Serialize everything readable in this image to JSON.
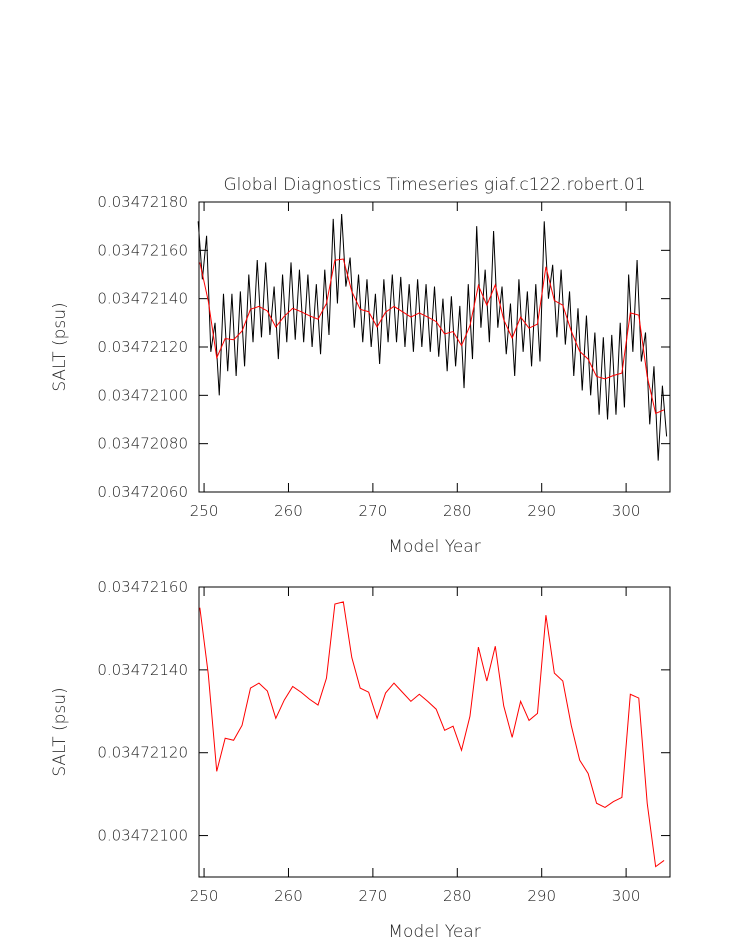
{
  "chart_data": [
    {
      "type": "line",
      "title": "Global Diagnostics Timeseries giaf.c122.robert.01",
      "x_label": "Model Year",
      "y_label": "SALT (psu)",
      "xlim": [
        249.4,
        305.2
      ],
      "xticks": [
        250,
        260,
        270,
        280,
        290,
        300
      ],
      "ylim": [
        0.0347206,
        0.0347218
      ],
      "yticks": [
        {
          "value": 0.0347206,
          "label": "0.03472060"
        },
        {
          "value": 0.0347208,
          "label": "0.03472080"
        },
        {
          "value": 0.034721,
          "label": "0.03472100"
        },
        {
          "value": 0.0347212,
          "label": "0.03472120"
        },
        {
          "value": 0.0347214,
          "label": "0.03472140"
        },
        {
          "value": 0.0347216,
          "label": "0.03472160"
        },
        {
          "value": 0.0347218,
          "label": "0.03472180"
        }
      ],
      "series": [
        {
          "color": "#000000",
          "x": [
            249.3,
            249.8,
            250.3,
            250.8,
            251.3,
            251.8,
            252.3,
            252.8,
            253.3,
            253.8,
            254.3,
            254.8,
            255.3,
            255.8,
            256.3,
            256.8,
            257.3,
            257.8,
            258.3,
            258.8,
            259.3,
            259.8,
            260.3,
            260.8,
            261.3,
            261.8,
            262.3,
            262.8,
            263.3,
            263.8,
            264.3,
            264.8,
            265.3,
            265.8,
            266.3,
            266.8,
            267.3,
            267.8,
            268.3,
            268.8,
            269.3,
            269.8,
            270.3,
            270.8,
            271.3,
            271.8,
            272.3,
            272.8,
            273.3,
            273.8,
            274.3,
            274.8,
            275.3,
            275.8,
            276.3,
            276.8,
            277.3,
            277.8,
            278.3,
            278.8,
            279.3,
            279.8,
            280.3,
            280.8,
            281.3,
            281.8,
            282.3,
            282.8,
            283.3,
            283.8,
            284.3,
            284.8,
            285.3,
            285.8,
            286.3,
            286.8,
            287.3,
            287.8,
            288.3,
            288.8,
            289.3,
            289.8,
            290.3,
            290.8,
            291.3,
            291.8,
            292.3,
            292.8,
            293.3,
            293.8,
            294.3,
            294.8,
            295.3,
            295.8,
            296.3,
            296.8,
            297.3,
            297.8,
            298.3,
            298.8,
            299.3,
            299.8,
            300.3,
            300.8,
            301.3,
            301.8,
            302.3,
            302.8,
            303.3,
            303.8,
            304.3,
            304.8
          ],
          "values": [
            0.03472172,
            0.03472148,
            0.03472166,
            0.03472118,
            0.0347213,
            0.034721,
            0.03472142,
            0.0347211,
            0.03472142,
            0.03472108,
            0.03472143,
            0.03472112,
            0.0347215,
            0.03472122,
            0.03472156,
            0.03472124,
            0.03472155,
            0.03472125,
            0.03472145,
            0.03472115,
            0.0347215,
            0.03472122,
            0.03472155,
            0.03472123,
            0.03472152,
            0.03472122,
            0.0347215,
            0.0347212,
            0.03472146,
            0.03472117,
            0.03472152,
            0.03472125,
            0.03472173,
            0.03472138,
            0.03472175,
            0.03472145,
            0.03472157,
            0.03472128,
            0.0347215,
            0.03472122,
            0.03472148,
            0.0347212,
            0.03472142,
            0.03472113,
            0.03472148,
            0.03472122,
            0.0347215,
            0.03472122,
            0.03472149,
            0.0347212,
            0.03472146,
            0.03472118,
            0.03472148,
            0.0347212,
            0.03472146,
            0.03472118,
            0.03472145,
            0.03472116,
            0.0347214,
            0.0347211,
            0.03472141,
            0.03472112,
            0.03472137,
            0.03472103,
            0.03472146,
            0.03472115,
            0.0347217,
            0.03472128,
            0.03472152,
            0.03472122,
            0.03472168,
            0.03472128,
            0.03472145,
            0.03472117,
            0.03472138,
            0.03472108,
            0.03472148,
            0.03472118,
            0.03472143,
            0.03472112,
            0.03472146,
            0.03472114,
            0.03472172,
            0.0347214,
            0.03472154,
            0.03472124,
            0.03472152,
            0.03472121,
            0.03472143,
            0.03472108,
            0.03472136,
            0.03472102,
            0.03472133,
            0.034721,
            0.03472126,
            0.03472092,
            0.03472124,
            0.0347209,
            0.03472125,
            0.03472092,
            0.0347213,
            0.03472095,
            0.0347215,
            0.03472118,
            0.03472156,
            0.03472114,
            0.03472126,
            0.03472088,
            0.03472112,
            0.03472073,
            0.03472104,
            0.03472083
          ]
        },
        {
          "color": "#ff0000",
          "x": [
            249.5,
            250.5,
            251.5,
            252.5,
            253.5,
            254.5,
            255.5,
            256.5,
            257.5,
            258.5,
            259.5,
            260.5,
            261.5,
            262.5,
            263.5,
            264.5,
            265.5,
            266.5,
            267.5,
            268.5,
            269.5,
            270.5,
            271.5,
            272.5,
            273.5,
            274.5,
            275.5,
            276.5,
            277.5,
            278.5,
            279.5,
            280.5,
            281.5,
            282.5,
            283.5,
            284.5,
            285.5,
            286.5,
            287.5,
            288.5,
            289.5,
            290.5,
            291.5,
            292.5,
            293.5,
            294.5,
            295.5,
            296.5,
            297.5,
            298.5,
            299.5,
            300.5,
            301.5,
            302.5,
            303.5,
            304.5
          ],
          "values": [
            0.03472155,
            0.03472139,
            0.034721155,
            0.034721235,
            0.03472123,
            0.034721266,
            0.034721356,
            0.034721368,
            0.034721349,
            0.034721283,
            0.034721327,
            0.03472136,
            0.034721346,
            0.034721329,
            0.034721315,
            0.03472138,
            0.034721559,
            0.034721564,
            0.03472143,
            0.034721356,
            0.034721346,
            0.034721283,
            0.034721344,
            0.034721368,
            0.034721346,
            0.034721324,
            0.034721341,
            0.034721324,
            0.034721305,
            0.034721254,
            0.034721264,
            0.034721206,
            0.034721288,
            0.034721455,
            0.034721373,
            0.034721457,
            0.034721313,
            0.034721237,
            0.034721324,
            0.034721278,
            0.034721295,
            0.034721532,
            0.034721392,
            0.034721373,
            0.034721266,
            0.034721182,
            0.03472115,
            0.034721078,
            0.034721068,
            0.034721082,
            0.034721092,
            0.034721341,
            0.034721332,
            0.034721078,
            0.034720925,
            0.03472094
          ]
        }
      ]
    },
    {
      "type": "line",
      "x_label": "Model Year",
      "y_label": "SALT (psu)",
      "xlim": [
        249.4,
        305.2
      ],
      "xticks": [
        250,
        260,
        270,
        280,
        290,
        300
      ],
      "ylim": [
        0.0347209,
        0.0347216
      ],
      "yticks": [
        {
          "value": 0.034721,
          "label": "0.03472100"
        },
        {
          "value": 0.0347212,
          "label": "0.03472120"
        },
        {
          "value": 0.0347214,
          "label": "0.03472140"
        },
        {
          "value": 0.0347216,
          "label": "0.03472160"
        }
      ],
      "series": [
        {
          "color": "#ff0000",
          "x": [
            249.5,
            250.5,
            251.5,
            252.5,
            253.5,
            254.5,
            255.5,
            256.5,
            257.5,
            258.5,
            259.5,
            260.5,
            261.5,
            262.5,
            263.5,
            264.5,
            265.5,
            266.5,
            267.5,
            268.5,
            269.5,
            270.5,
            271.5,
            272.5,
            273.5,
            274.5,
            275.5,
            276.5,
            277.5,
            278.5,
            279.5,
            280.5,
            281.5,
            282.5,
            283.5,
            284.5,
            285.5,
            286.5,
            287.5,
            288.5,
            289.5,
            290.5,
            291.5,
            292.5,
            293.5,
            294.5,
            295.5,
            296.5,
            297.5,
            298.5,
            299.5,
            300.5,
            301.5,
            302.5,
            303.5,
            304.5
          ],
          "values": [
            0.03472155,
            0.03472139,
            0.034721155,
            0.034721235,
            0.03472123,
            0.034721266,
            0.034721356,
            0.034721368,
            0.034721349,
            0.034721283,
            0.034721327,
            0.03472136,
            0.034721346,
            0.034721329,
            0.034721315,
            0.03472138,
            0.034721559,
            0.034721564,
            0.03472143,
            0.034721356,
            0.034721346,
            0.034721283,
            0.034721344,
            0.034721368,
            0.034721346,
            0.034721324,
            0.034721341,
            0.034721324,
            0.034721305,
            0.034721254,
            0.034721264,
            0.034721206,
            0.034721288,
            0.034721455,
            0.034721373,
            0.034721457,
            0.034721313,
            0.034721237,
            0.034721324,
            0.034721278,
            0.034721295,
            0.034721532,
            0.034721392,
            0.034721373,
            0.034721266,
            0.034721182,
            0.03472115,
            0.034721078,
            0.034721068,
            0.034721082,
            0.034721092,
            0.034721341,
            0.034721332,
            0.034721078,
            0.034720925,
            0.03472094
          ]
        }
      ]
    }
  ]
}
